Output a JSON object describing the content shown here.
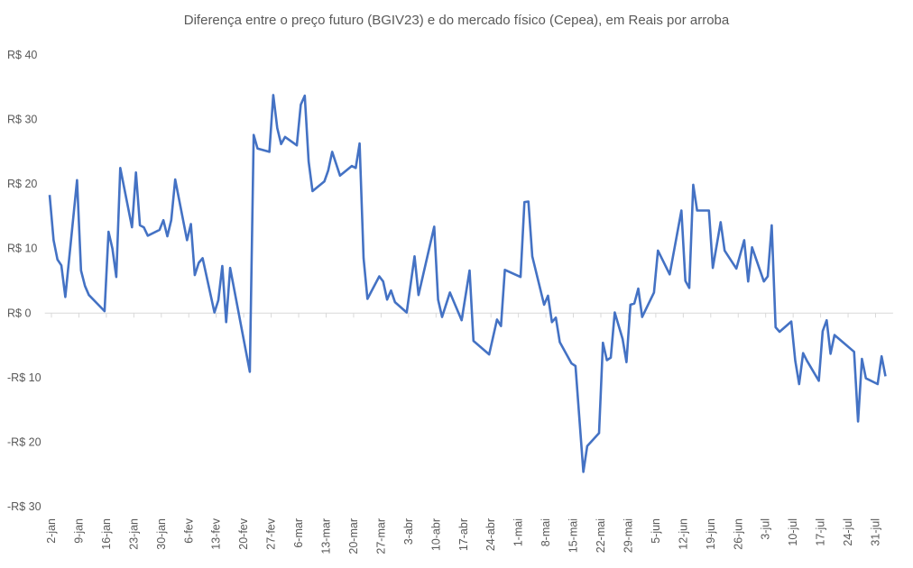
{
  "chart_data": {
    "type": "line",
    "title": "Diferença entre o preço futuro (BGIV23) e do mercado físico (Cepea), em Reais por arroba",
    "xlabel": "",
    "ylabel": "",
    "ylim": [
      -30,
      40
    ],
    "y_ticks": [
      40,
      30,
      20,
      10,
      0,
      -10,
      -20,
      -30
    ],
    "y_tick_labels": [
      "R$ 40",
      "R$ 30",
      "R$ 20",
      "R$ 10",
      "R$ 0",
      "-R$ 10",
      "-R$ 20",
      "-R$ 30"
    ],
    "x_unit": "days since 2-jan",
    "xlim": [
      -1,
      214
    ],
    "x_ticks": [
      0,
      7,
      14,
      21,
      28,
      35,
      42,
      49,
      56,
      63,
      70,
      77,
      84,
      91,
      98,
      105,
      112,
      119,
      126,
      133,
      140,
      147,
      154,
      161,
      168,
      175,
      182,
      189,
      196,
      203,
      210
    ],
    "x_tick_labels": [
      "2-jan",
      "9-jan",
      "16-jan",
      "23-jan",
      "30-jan",
      "6-fev",
      "13-fev",
      "20-fev",
      "27-fev",
      "6-mar",
      "13-mar",
      "20-mar",
      "27-mar",
      "3-abr",
      "10-abr",
      "17-abr",
      "24-abr",
      "1-mai",
      "8-mai",
      "15-mai",
      "22-mai",
      "29-mai",
      "5-jun",
      "12-jun",
      "19-jun",
      "26-jun",
      "3-jul",
      "10-jul",
      "17-jul",
      "24-jul",
      "31-jul"
    ],
    "grid": false,
    "color": "#4472C4",
    "series": [
      {
        "name": "Diferença",
        "x": [
          0,
          1,
          2,
          3,
          4,
          7,
          8,
          9,
          10,
          14,
          15,
          16,
          17,
          18,
          21,
          22,
          23,
          24,
          25,
          28,
          29,
          30,
          31,
          32,
          35,
          36,
          37,
          38,
          39,
          42,
          43,
          44,
          45,
          46,
          51,
          52,
          53,
          56,
          57,
          58,
          59,
          60,
          63,
          64,
          65,
          66,
          67,
          70,
          71,
          72,
          74,
          77,
          78,
          79,
          80,
          81,
          84,
          85,
          86,
          87,
          88,
          91,
          93,
          94,
          98,
          99,
          100,
          102,
          105,
          107,
          108,
          112,
          114,
          115,
          116,
          120,
          121,
          122,
          123,
          126,
          127,
          128,
          129,
          130,
          133,
          134,
          136,
          137,
          140,
          141,
          142,
          143,
          144,
          146,
          147,
          148,
          149,
          150,
          151,
          154,
          155,
          158,
          161,
          162,
          163,
          164,
          165,
          168,
          169,
          171,
          172,
          175,
          177,
          178,
          179,
          182,
          183,
          184,
          185,
          186,
          189,
          190,
          191,
          192,
          193,
          196,
          197,
          198,
          199,
          200,
          205,
          206,
          207,
          208,
          211,
          212,
          213
        ],
        "values": [
          18.3,
          11.3,
          8.3,
          7.4,
          2.5,
          20.6,
          6.6,
          4.2,
          2.8,
          0.3,
          12.6,
          10,
          5.6,
          22.5,
          13.3,
          21.8,
          13.6,
          13.3,
          12,
          12.9,
          14.4,
          11.9,
          14.4,
          20.7,
          11.3,
          13.8,
          5.9,
          7.8,
          8.5,
          0.1,
          2,
          7.3,
          -1.4,
          7,
          -9.1,
          27.6,
          25.5,
          25,
          33.8,
          28.7,
          26.2,
          27.3,
          26,
          32.3,
          33.7,
          23.5,
          18.9,
          20.4,
          22.1,
          25,
          21.3,
          22.8,
          22.5,
          26.3,
          8.5,
          2.2,
          5.7,
          4.9,
          2.1,
          3.5,
          1.7,
          0.1,
          8.8,
          2.8,
          13.4,
          2.1,
          -0.6,
          3.2,
          -1.1,
          6.6,
          -4.3,
          -6.4,
          -1,
          -2,
          6.7,
          5.6,
          17.2,
          17.3,
          8.8,
          1.3,
          2.7,
          -1.4,
          -0.7,
          -4.5,
          -7.8,
          -8.2,
          -24.6,
          -20.6,
          -18.6,
          -4.6,
          -7.3,
          -6.9,
          0.1,
          -4,
          -7.6,
          1.3,
          1.5,
          3.8,
          -0.6,
          3.2,
          9.7,
          6,
          15.9,
          5,
          3.9,
          19.9,
          15.9,
          15.9,
          7,
          14.1,
          9.7,
          6.9,
          11.3,
          4.9,
          10.2,
          4.9,
          5.7,
          13.6,
          -2.2,
          -2.9,
          -1.3,
          -7.4,
          -11,
          -6.2,
          -7.4,
          -10.5,
          -2.8,
          -1.1,
          -6.3,
          -3.4,
          -6,
          -16.8,
          -7.1,
          -10.1,
          -11,
          -6.7,
          -9.8
        ]
      }
    ]
  }
}
